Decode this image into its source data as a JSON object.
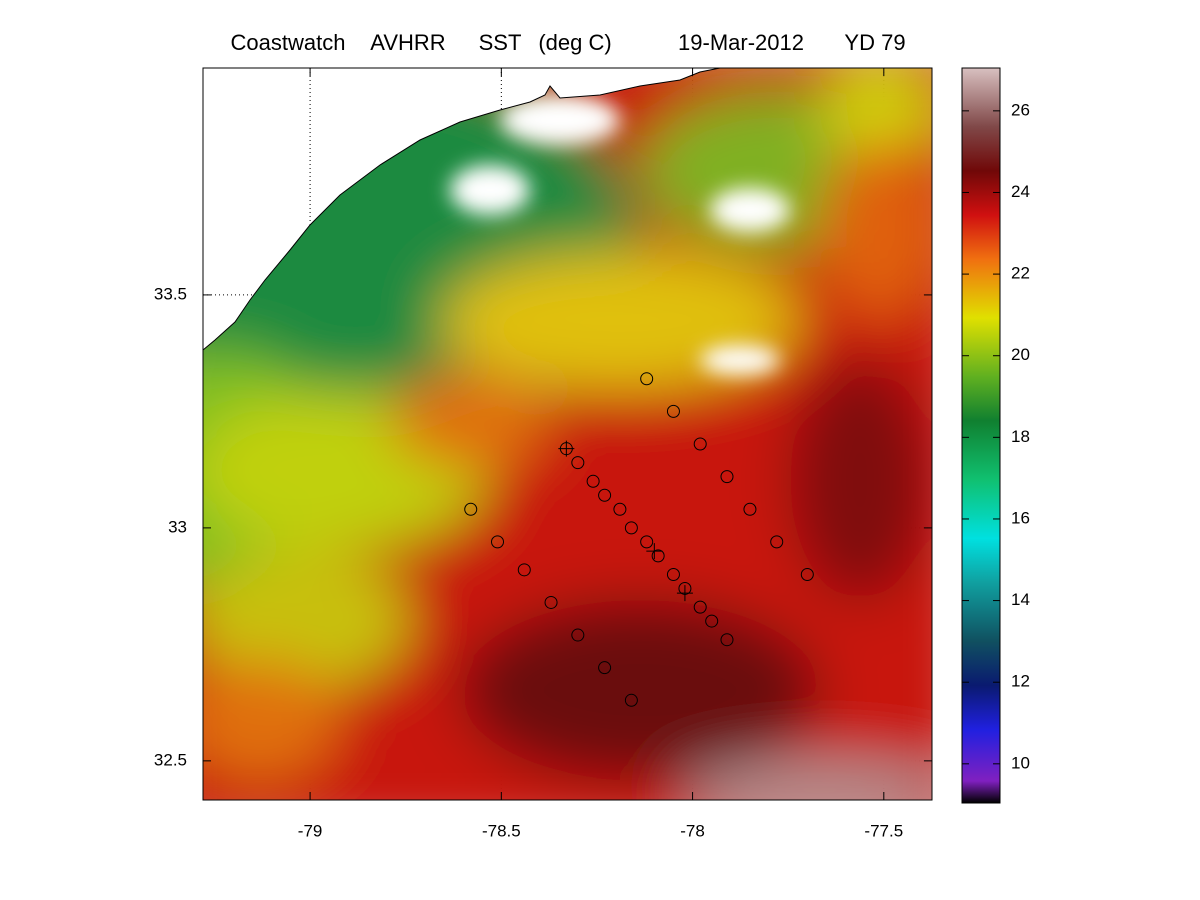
{
  "map": {
    "type": "map",
    "title": [
      "Coastwatch",
      "AVHRR",
      "SST",
      "(deg C)",
      "19-Mar-2012",
      "YD 79"
    ],
    "xlim": [
      -79.28,
      -77.374
    ],
    "ylim": [
      32.416,
      33.987
    ],
    "xticks": [
      -79,
      -78.5,
      -78,
      -77.5
    ],
    "yticks": [
      32.5,
      33,
      33.5
    ],
    "grid": true,
    "stations": {
      "lon": [
        -78.12,
        -78.05,
        -77.98,
        -77.91,
        -77.85,
        -77.78,
        -77.7,
        -78.33,
        -78.3,
        -78.26,
        -78.23,
        -78.19,
        -78.16,
        -78.12,
        -78.09,
        -78.05,
        -78.02,
        -77.98,
        -77.95,
        -77.91,
        -78.58,
        -78.51,
        -78.44,
        -78.37,
        -78.3,
        -78.23,
        -78.16
      ],
      "lat": [
        33.32,
        33.25,
        33.18,
        33.11,
        33.04,
        32.97,
        32.9,
        33.17,
        33.14,
        33.1,
        33.07,
        33.04,
        33.0,
        32.97,
        32.94,
        32.9,
        32.87,
        32.83,
        32.8,
        32.76,
        33.04,
        32.97,
        32.91,
        32.84,
        32.77,
        32.7,
        32.63
      ]
    },
    "crosses": {
      "lon": [
        -78.33,
        -78.1,
        -78.02
      ],
      "lat": [
        33.17,
        32.95,
        32.86
      ]
    }
  },
  "colorbar": {
    "lim": [
      9.04,
      27.05
    ],
    "ticks": [
      10,
      12,
      14,
      16,
      18,
      20,
      22,
      24,
      26
    ]
  }
}
